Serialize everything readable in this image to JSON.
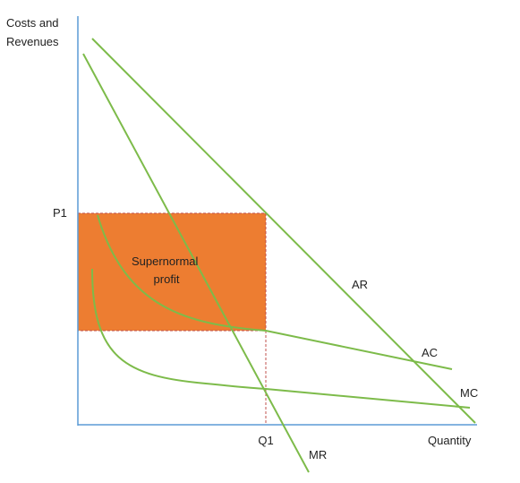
{
  "y_axis_label": [
    "Costs and",
    "Revenues"
  ],
  "x_axis_label": "Quantity",
  "price_label": "P1",
  "quantity_label": "Q1",
  "region_label": [
    "Supernormal",
    "profit"
  ],
  "curves": {
    "ar": "AR",
    "mr": "MR",
    "ac": "AC",
    "mc": "MC"
  },
  "colors": {
    "axis": "#5b9bd5",
    "curve": "#7dbb4a",
    "profit_fill": "#ed7d31",
    "dashed_line": "#c0504d",
    "text": "#222222"
  }
}
